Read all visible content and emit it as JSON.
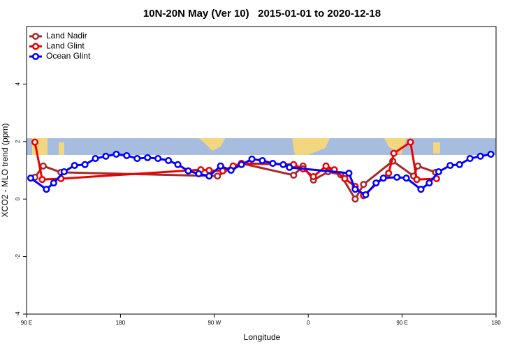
{
  "chart_data": {
    "type": "line",
    "title": "10N-20N May (Ver 10)   2015-01-01 to 2020-12-18",
    "x_label": "Longitude",
    "y_label": "XCO2 - MLO trend (ppm)",
    "xlim": [
      90,
      540
    ],
    "xticks": [
      {
        "value": 90,
        "label": "90 E"
      },
      180,
      {
        "value": 270,
        "label": "90 W"
      },
      {
        "value": 360,
        "label": "0"
      },
      {
        "value": 450,
        "label": "90 E"
      },
      {
        "value": 540,
        "label": "180"
      }
    ],
    "ylim": [
      -4,
      6
    ],
    "yticks": [
      -4,
      -2,
      0,
      2,
      4
    ],
    "legend": "upper-left",
    "series": [
      {
        "name": "Land Nadir",
        "color": "#a52a2a",
        "x": [
          98,
          106,
          123,
          273,
          288,
          296,
          346,
          355,
          365,
          379,
          391,
          405,
          413,
          441,
          461,
          465,
          482
        ],
        "values": [
          0.76,
          1.15,
          0.93,
          0.8,
          1.12,
          1.24,
          0.83,
          1.15,
          0.66,
          0.95,
          0.85,
          0.0,
          0.51,
          1.32,
          0.8,
          1.15,
          0.93
        ]
      },
      {
        "name": "Land Glint",
        "color": "#ee0000",
        "x": [
          98,
          105,
          123,
          257,
          265,
          278,
          288,
          296,
          346,
          355,
          365,
          377,
          385,
          395,
          405,
          413,
          437,
          442,
          458,
          464,
          483
        ],
        "values": [
          1.98,
          0.68,
          0.71,
          1.02,
          1.0,
          0.98,
          1.15,
          1.24,
          1.2,
          1.05,
          0.78,
          1.15,
          1.02,
          0.71,
          0.44,
          0.12,
          0.9,
          1.59,
          1.98,
          0.68,
          0.71
        ]
      },
      {
        "name": "Ocean Glint",
        "color": "#0000ff",
        "x": [
          94,
          109,
          116,
          126,
          136,
          146,
          156,
          166,
          176,
          186,
          196,
          206,
          216,
          226,
          235,
          245,
          255,
          265,
          276,
          286,
          296,
          306,
          316,
          326,
          336,
          342,
          399,
          405,
          415,
          425,
          432,
          445,
          454,
          468,
          476,
          485,
          496,
          505,
          515,
          525,
          535
        ],
        "values": [
          0.73,
          0.34,
          0.56,
          0.95,
          1.17,
          1.2,
          1.41,
          1.49,
          1.56,
          1.51,
          1.41,
          1.44,
          1.41,
          1.34,
          1.2,
          0.98,
          0.88,
          0.8,
          1.15,
          1.0,
          1.2,
          1.39,
          1.34,
          1.24,
          1.2,
          1.1,
          0.9,
          0.34,
          0.15,
          0.56,
          0.73,
          0.76,
          0.73,
          0.34,
          0.56,
          0.95,
          1.17,
          1.2,
          1.41,
          1.49,
          1.56
        ]
      }
    ]
  }
}
